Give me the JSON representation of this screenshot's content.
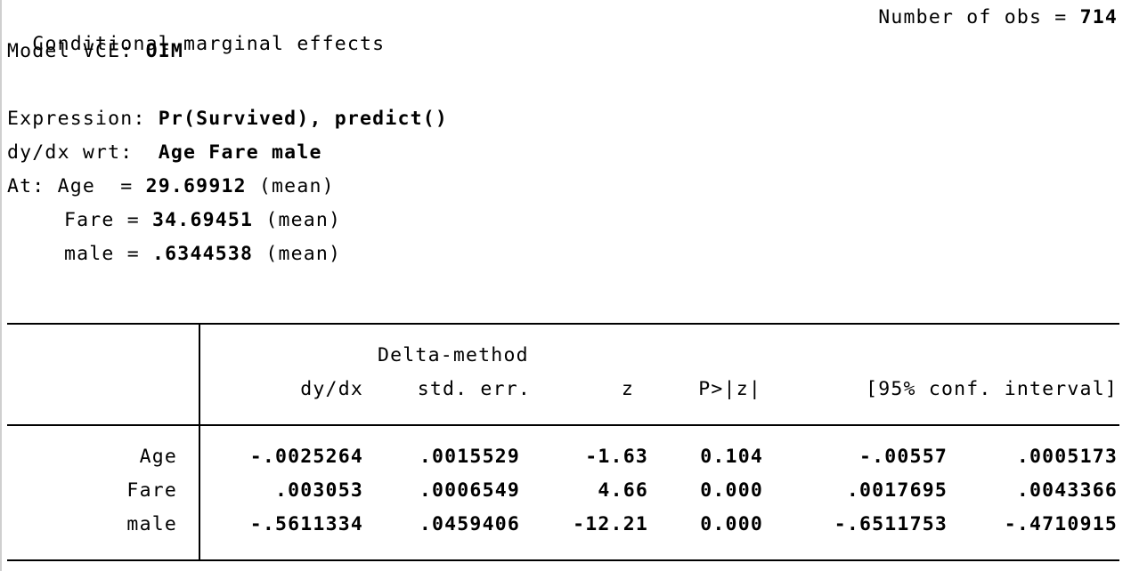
{
  "header": {
    "title": "Conditional marginal effects",
    "obs_label": "Number of obs = ",
    "obs_value": "714",
    "vce_label": "Model VCE: ",
    "vce_value": "OIM",
    "expression_label": "Expression: ",
    "expression_value": "Pr(Survived), predict()",
    "wrt_label": "dy/dx wrt:  ",
    "wrt_value": "Age Fare male",
    "at_label": "At: ",
    "at": [
      {
        "name": "Age  = ",
        "value": "29.69912",
        "note": " (mean)"
      },
      {
        "name": "Fare = ",
        "value": "34.69451",
        "note": " (mean)"
      },
      {
        "name": "male = ",
        "value": ".6344538",
        "note": " (mean)"
      }
    ]
  },
  "table": {
    "super_header": "Delta-method",
    "columns": [
      "dy/dx",
      "std. err.",
      "z",
      "P>|z|",
      "[95% conf. interval]"
    ],
    "rows": [
      {
        "label": "Age",
        "values": [
          "-.0025264",
          ".0015529",
          "-1.63",
          "0.104",
          "-.00557",
          ".0005173"
        ]
      },
      {
        "label": "Fare",
        "values": [
          ".003053",
          ".0006549",
          "4.66",
          "0.000",
          ".0017695",
          ".0043366"
        ]
      },
      {
        "label": "male",
        "values": [
          "-.5611334",
          ".0459406",
          "-12.21",
          "0.000",
          "-.6511753",
          "-.4710915"
        ]
      }
    ]
  }
}
